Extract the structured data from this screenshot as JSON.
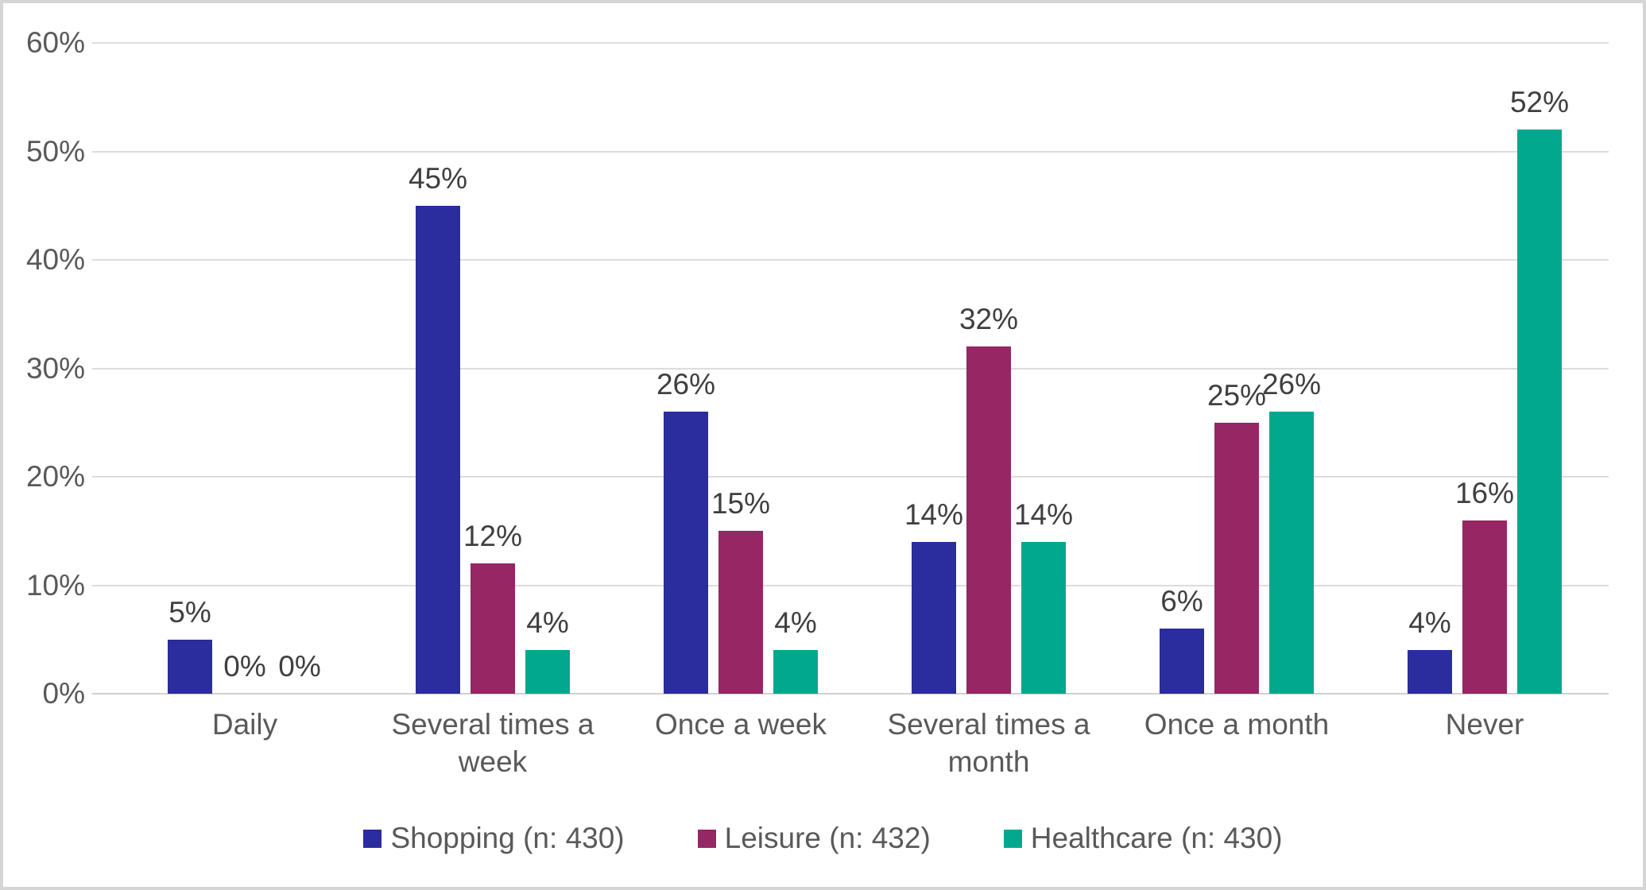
{
  "chart_data": {
    "type": "bar",
    "title": "",
    "xlabel": "",
    "ylabel": "",
    "categories": [
      "Daily",
      "Several times a week",
      "Once a week",
      "Several times a month",
      "Once a month",
      "Never"
    ],
    "series": [
      {
        "name": "Shopping (n: 430)",
        "color": "#2b2c9d",
        "values": [
          5,
          45,
          26,
          14,
          6,
          4
        ],
        "labels": [
          "5%",
          "45%",
          "26%",
          "14%",
          "6%",
          "4%"
        ]
      },
      {
        "name": "Leisure (n: 432)",
        "color": "#962664",
        "values": [
          0,
          12,
          15,
          32,
          25,
          16
        ],
        "labels": [
          "0%",
          "12%",
          "15%",
          "32%",
          "25%",
          "16%"
        ]
      },
      {
        "name": "Healthcare (n: 430)",
        "color": "#02a88e",
        "values": [
          0,
          4,
          4,
          14,
          26,
          52
        ],
        "labels": [
          "0%",
          "4%",
          "4%",
          "14%",
          "26%",
          "52%"
        ]
      }
    ],
    "ylim": [
      0,
      60
    ],
    "y_ticks": [
      "0%",
      "10%",
      "20%",
      "30%",
      "40%",
      "50%",
      "60%"
    ],
    "y_tick_values": [
      0,
      10,
      20,
      30,
      40,
      50,
      60
    ],
    "grid": true,
    "data_labels": true,
    "legend_position": "bottom"
  },
  "style_colors": {
    "gridline": "#dcdcdc",
    "axis_text": "#595959",
    "data_label_text": "#3f3f3f",
    "frame_border": "#d5d5d5",
    "background": "#ffffff"
  }
}
